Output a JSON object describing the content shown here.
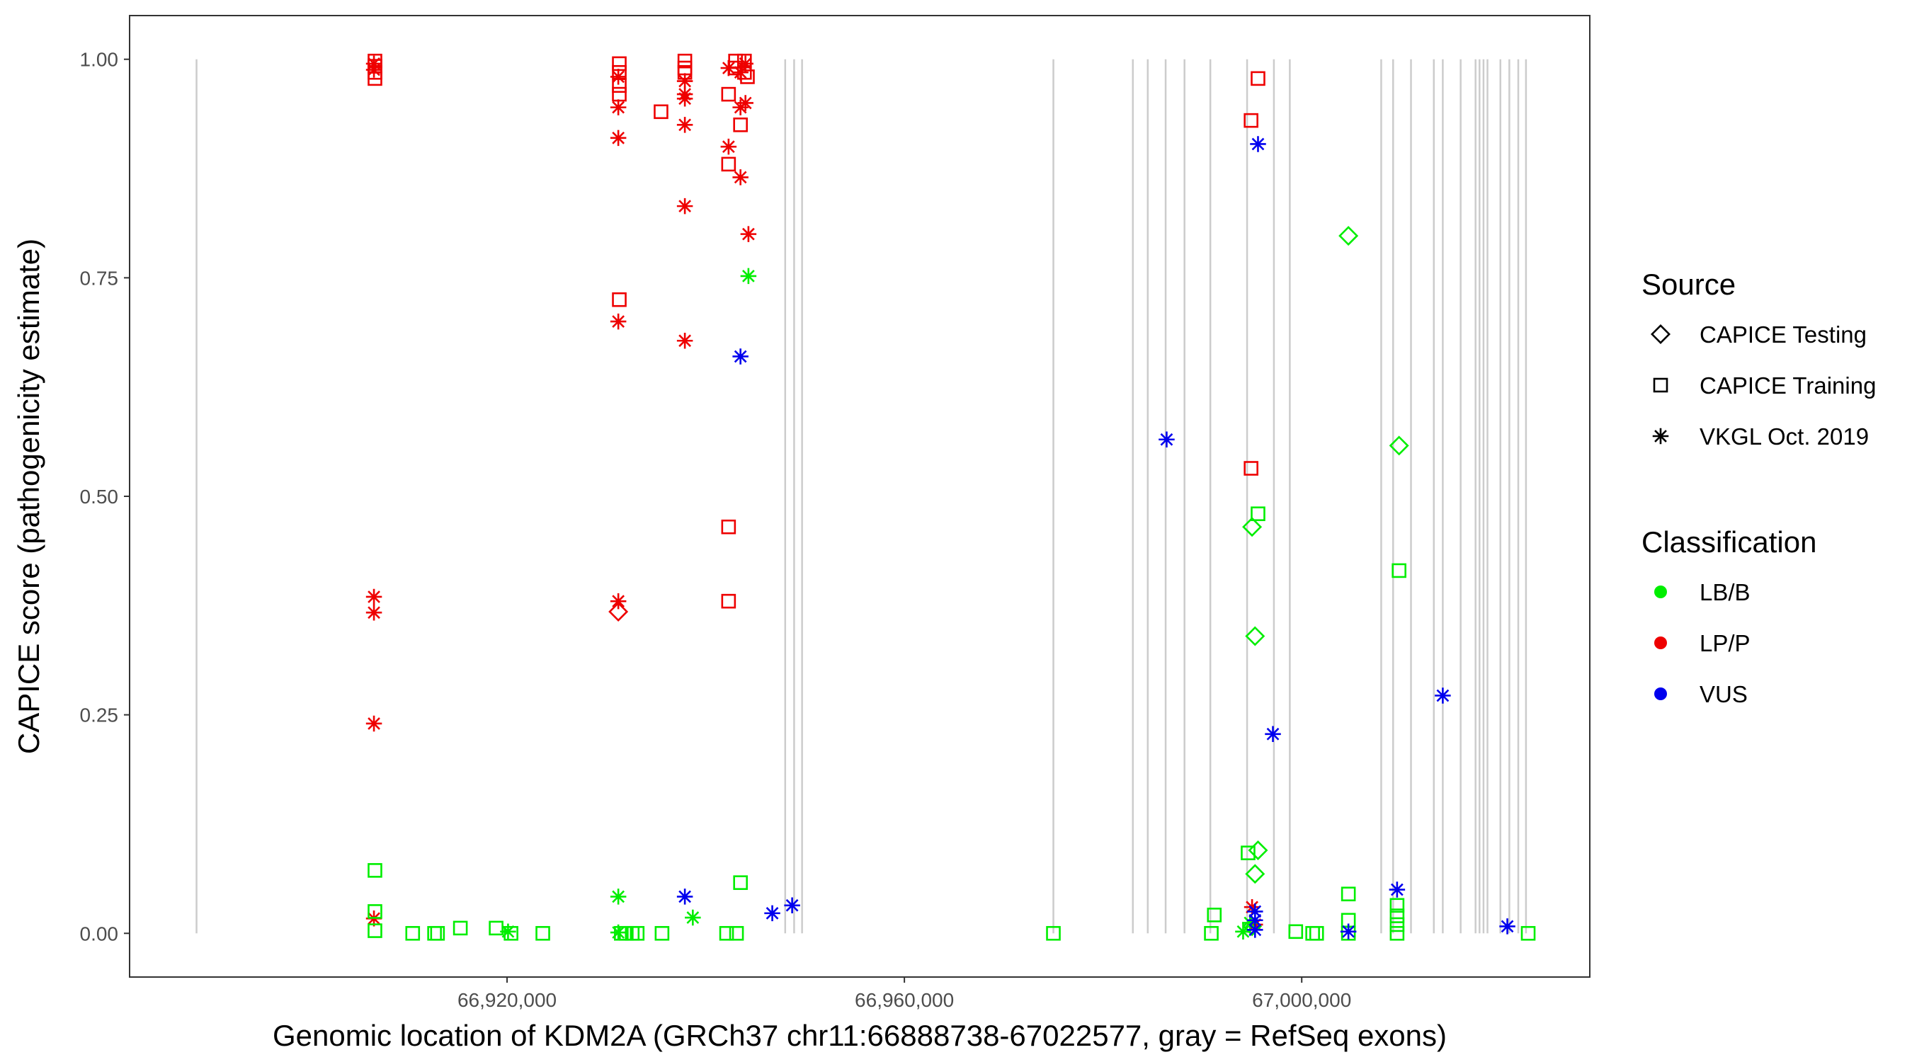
{
  "chart_data": {
    "type": "scatter",
    "xlabel": "Genomic location of KDM2A (GRCh37 chr11:66888738-67022577, gray = RefSeq exons)",
    "ylabel": "CAPICE score (pathogenicity estimate)",
    "xlim": [
      66882000,
      67029000
    ],
    "ylim": [
      -0.05,
      1.05
    ],
    "x_ticks": [
      {
        "value": 66920000,
        "label": "66,920,000"
      },
      {
        "value": 66960000,
        "label": "66,960,000"
      },
      {
        "value": 67000000,
        "label": "67,000,000"
      }
    ],
    "y_ticks": [
      {
        "value": 0.0,
        "label": "0.00"
      },
      {
        "value": 0.25,
        "label": "0.25"
      },
      {
        "value": 0.5,
        "label": "0.50"
      },
      {
        "value": 0.75,
        "label": "0.75"
      },
      {
        "value": 1.0,
        "label": "1.00"
      }
    ],
    "grid": false,
    "legend_position": "right",
    "exon_positions": [
      66888738,
      66948000,
      66948900,
      66949700,
      66975000,
      66983000,
      66984500,
      66986300,
      66988200,
      66990800,
      66994500,
      66997200,
      66998800,
      67008000,
      67009200,
      67011000,
      67013300,
      67014200,
      67016000,
      67017500,
      67017900,
      67018300,
      67018700,
      67020000,
      67020900,
      67021800,
      67022577
    ],
    "exon_color": "#cccccc",
    "legend": {
      "source_title": "Source",
      "source_items": [
        {
          "label": "CAPICE Testing",
          "shape": "diamond"
        },
        {
          "label": "CAPICE Training",
          "shape": "square"
        },
        {
          "label": "VKGL Oct. 2019",
          "shape": "asterisk"
        }
      ],
      "class_title": "Classification",
      "class_items": [
        {
          "label": "LB/B",
          "color": "#00ee00"
        },
        {
          "label": "LP/P",
          "color": "#ee0000"
        },
        {
          "label": "VUS",
          "color": "#0000ee"
        }
      ]
    },
    "series": [
      {
        "source": "CAPICE Training",
        "shape": "square",
        "classification": "LP/P",
        "color": "#ee0000",
        "points": [
          [
            66906700,
            0.998
          ],
          [
            66906700,
            0.992
          ],
          [
            66906700,
            0.985
          ],
          [
            66906700,
            0.978
          ],
          [
            66931300,
            0.995
          ],
          [
            66931300,
            0.985
          ],
          [
            66931300,
            0.97
          ],
          [
            66931300,
            0.96
          ],
          [
            66931300,
            0.725
          ],
          [
            66935500,
            0.94
          ],
          [
            66937900,
            0.998
          ],
          [
            66937900,
            0.99
          ],
          [
            66937900,
            0.985
          ],
          [
            66942300,
            0.96
          ],
          [
            66942300,
            0.88
          ],
          [
            66942300,
            0.465
          ],
          [
            66942300,
            0.38
          ],
          [
            66943000,
            0.998
          ],
          [
            66943000,
            0.99
          ],
          [
            66943500,
            0.925
          ],
          [
            66943900,
            0.998
          ],
          [
            66943900,
            0.985
          ],
          [
            66944200,
            0.98
          ],
          [
            66994900,
            0.93
          ],
          [
            66994900,
            0.532
          ],
          [
            66995600,
            0.978
          ]
        ]
      },
      {
        "source": "VKGL Oct. 2019",
        "shape": "asterisk",
        "classification": "LP/P",
        "color": "#ee0000",
        "points": [
          [
            66906600,
            0.995
          ],
          [
            66906600,
            0.988
          ],
          [
            66906600,
            0.385
          ],
          [
            66906600,
            0.367
          ],
          [
            66906600,
            0.24
          ],
          [
            66906600,
            0.017
          ],
          [
            66931200,
            0.98
          ],
          [
            66931200,
            0.945
          ],
          [
            66931200,
            0.91
          ],
          [
            66931200,
            0.7
          ],
          [
            66931200,
            0.38
          ],
          [
            66937900,
            0.975
          ],
          [
            66937900,
            0.96
          ],
          [
            66937900,
            0.955
          ],
          [
            66937900,
            0.925
          ],
          [
            66937900,
            0.832
          ],
          [
            66937900,
            0.678
          ],
          [
            66942300,
            0.99
          ],
          [
            66942300,
            0.9
          ],
          [
            66943500,
            0.985
          ],
          [
            66943500,
            0.945
          ],
          [
            66943500,
            0.865
          ],
          [
            66944000,
            0.995
          ],
          [
            66944000,
            0.95
          ],
          [
            66944300,
            0.8
          ],
          [
            66995000,
            0.03
          ],
          [
            66995300,
            0.01
          ]
        ]
      },
      {
        "source": "CAPICE Testing",
        "shape": "diamond",
        "classification": "LP/P",
        "color": "#ee0000",
        "points": [
          [
            66931200,
            0.368
          ]
        ]
      },
      {
        "source": "CAPICE Training",
        "shape": "square",
        "classification": "LB/B",
        "color": "#00ee00",
        "points": [
          [
            66906700,
            0.072
          ],
          [
            66906700,
            0.025
          ],
          [
            66906700,
            0.003
          ],
          [
            66910500,
            0.0
          ],
          [
            66912700,
            0.0
          ],
          [
            66913000,
            0.0
          ],
          [
            66915300,
            0.006
          ],
          [
            66918900,
            0.006
          ],
          [
            66920400,
            0.0
          ],
          [
            66923600,
            0.0
          ],
          [
            66931500,
            0.0
          ],
          [
            66932000,
            0.0
          ],
          [
            66932600,
            0.0
          ],
          [
            66933100,
            0.0
          ],
          [
            66935600,
            0.0
          ],
          [
            66942100,
            0.0
          ],
          [
            66943100,
            0.0
          ],
          [
            66943500,
            0.058
          ],
          [
            66975000,
            0.0
          ],
          [
            66990900,
            0.0
          ],
          [
            66991200,
            0.021
          ],
          [
            66994600,
            0.092
          ],
          [
            66995600,
            0.48
          ],
          [
            66999400,
            0.002
          ],
          [
            67001100,
            0.0
          ],
          [
            67001500,
            0.0
          ],
          [
            67004700,
            0.045
          ],
          [
            67004700,
            0.015
          ],
          [
            67004700,
            0.0
          ],
          [
            67009600,
            0.032
          ],
          [
            67009600,
            0.02
          ],
          [
            67009600,
            0.01
          ],
          [
            67009600,
            0.0
          ],
          [
            67009800,
            0.415
          ],
          [
            67022800,
            0.0
          ]
        ]
      },
      {
        "source": "VKGL Oct. 2019",
        "shape": "asterisk",
        "classification": "LB/B",
        "color": "#00ee00",
        "points": [
          [
            66920100,
            0.002
          ],
          [
            66931200,
            0.042
          ],
          [
            66931200,
            0.001
          ],
          [
            66938700,
            0.018
          ],
          [
            66944300,
            0.752
          ],
          [
            66994100,
            0.002
          ],
          [
            66994800,
            0.012
          ]
        ]
      },
      {
        "source": "CAPICE Testing",
        "shape": "diamond",
        "classification": "LB/B",
        "color": "#00ee00",
        "points": [
          [
            66995000,
            0.465
          ],
          [
            66995300,
            0.34
          ],
          [
            66995600,
            0.095
          ],
          [
            66995300,
            0.068
          ],
          [
            66995000,
            0.008
          ],
          [
            67004700,
            0.798
          ],
          [
            67009800,
            0.558
          ]
        ]
      },
      {
        "source": "VKGL Oct. 2019",
        "shape": "asterisk",
        "classification": "VUS",
        "color": "#0000ee",
        "points": [
          [
            66937900,
            0.042
          ],
          [
            66943500,
            0.66
          ],
          [
            66946700,
            0.023
          ],
          [
            66948700,
            0.032
          ],
          [
            66986400,
            0.565
          ],
          [
            66995600,
            0.903
          ],
          [
            66997100,
            0.228
          ],
          [
            66995300,
            0.025
          ],
          [
            66995300,
            0.015
          ],
          [
            66995300,
            0.004
          ],
          [
            67004700,
            0.002
          ],
          [
            67009600,
            0.05
          ],
          [
            67014200,
            0.272
          ],
          [
            67020700,
            0.008
          ]
        ]
      }
    ]
  }
}
